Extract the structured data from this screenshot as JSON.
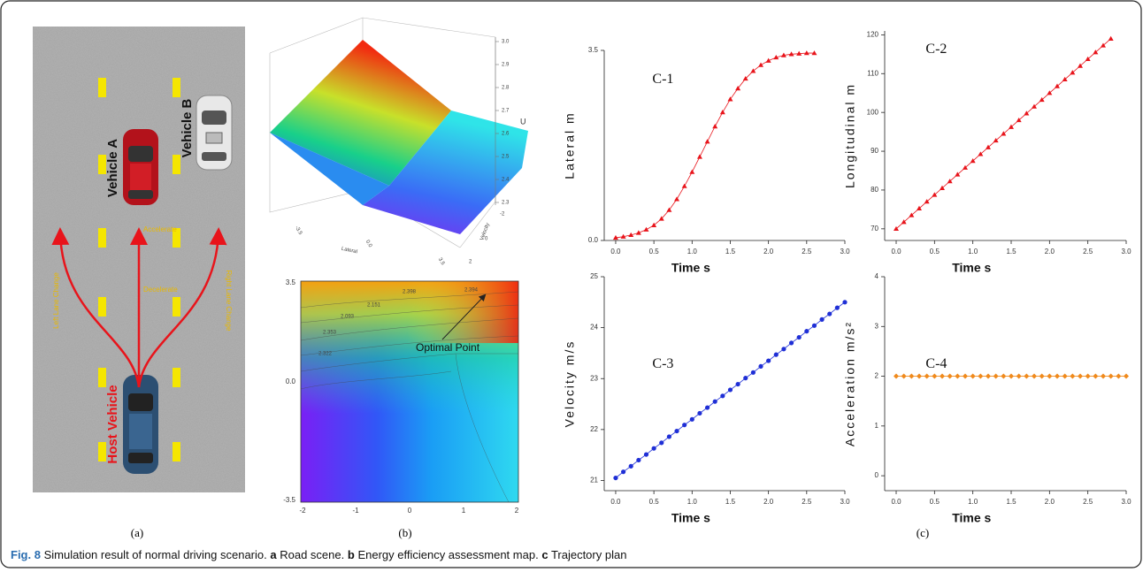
{
  "figure": {
    "panel_labels": [
      "(a)",
      "(b)",
      "(c)"
    ],
    "road": {
      "vehicle_a": "Vehicle A",
      "vehicle_b": "Vehicle B",
      "host": "Host Vehicle",
      "left_change": "Left Lane Change",
      "right_change": "Right Lane Change",
      "accelerate": "Accelerate",
      "decelerate": "Decelerate"
    },
    "surface": {
      "z_label": "U",
      "z_ticks": [
        "3.0",
        "2.9",
        "2.8",
        "2.7",
        "2.6",
        "2.5",
        "2.4",
        "2.3"
      ],
      "x_label": "Lateral",
      "x_ticks": [
        "-3.5",
        "0.0",
        "3.5"
      ],
      "y_label": "Velocity",
      "y_ticks": [
        "2",
        "0",
        "-2"
      ]
    },
    "contour": {
      "y_ticks": [
        "3.5",
        "0.0",
        "-3.5"
      ],
      "x_ticks": [
        "-2",
        "-1",
        "0",
        "1",
        "2"
      ],
      "levels": [
        "2.398",
        "2.394",
        "2.151",
        "2.093",
        "2.353",
        "2.322"
      ],
      "annotation": "Optimal Point"
    },
    "caption": {
      "label": "Fig. 8",
      "text": "Simulation result of normal driving scenario.",
      "parts": [
        {
          "key": "a",
          "text": "Road scene."
        },
        {
          "key": "b",
          "text": "Energy efficiency assessment map."
        },
        {
          "key": "c",
          "text": "Trajectory plan"
        }
      ]
    }
  },
  "chart_data": [
    {
      "type": "line",
      "title": "C-1",
      "xlabel": "Time s",
      "ylabel": "Lateral m",
      "color": "#e8141b",
      "marker": "triangle",
      "x": [
        0,
        0.1,
        0.2,
        0.3,
        0.4,
        0.5,
        0.6,
        0.7,
        0.8,
        0.9,
        1,
        1.1,
        1.2,
        1.3,
        1.4,
        1.5,
        1.6,
        1.7,
        1.8,
        1.9,
        2,
        2.1,
        2.2,
        2.3,
        2.4,
        2.5,
        2.6
      ],
      "values": [
        0.05,
        0.07,
        0.1,
        0.14,
        0.2,
        0.28,
        0.4,
        0.56,
        0.76,
        1,
        1.26,
        1.54,
        1.82,
        2.1,
        2.36,
        2.6,
        2.8,
        2.98,
        3.12,
        3.23,
        3.31,
        3.37,
        3.41,
        3.43,
        3.44,
        3.45,
        3.45
      ],
      "xlim": [
        -0.15,
        3
      ],
      "ylim": [
        0,
        3.5
      ],
      "xticks": [
        {
          "value": 0,
          "label": "0.0"
        },
        0.5,
        {
          "value": 1,
          "label": "1.0"
        },
        1.5,
        {
          "value": 2,
          "label": "2.0"
        },
        2.5,
        {
          "value": 3,
          "label": "3.0"
        }
      ],
      "yticks": [
        {
          "value": 0,
          "label": "0.0"
        },
        3.5
      ]
    },
    {
      "type": "line",
      "title": "C-2",
      "xlabel": "Time s",
      "ylabel": "Longitudinal m",
      "color": "#e8141b",
      "marker": "triangle",
      "x": [
        0,
        0.1,
        0.2,
        0.3,
        0.4,
        0.5,
        0.6,
        0.7,
        0.8,
        0.9,
        1,
        1.1,
        1.2,
        1.3,
        1.4,
        1.5,
        1.6,
        1.7,
        1.8,
        1.9,
        2,
        2.1,
        2.2,
        2.3,
        2.4,
        2.5,
        2.6,
        2.7,
        2.8
      ],
      "values": [
        70,
        71.75,
        73.5,
        75.25,
        77,
        78.75,
        80.5,
        82.25,
        84,
        85.75,
        87.5,
        89.25,
        91,
        92.75,
        94.5,
        96.25,
        98,
        99.75,
        101.5,
        103.25,
        105,
        106.75,
        108.5,
        110.25,
        112,
        113.75,
        115.5,
        117.25,
        119
      ],
      "xlim": [
        -0.15,
        3
      ],
      "ylim": [
        67,
        121
      ],
      "xticks": [
        {
          "value": 0,
          "label": "0.0"
        },
        0.5,
        {
          "value": 1,
          "label": "1.0"
        },
        1.5,
        {
          "value": 2,
          "label": "2.0"
        },
        2.5,
        {
          "value": 3,
          "label": "3.0"
        }
      ],
      "yticks": [
        70,
        80,
        90,
        100,
        110,
        120
      ]
    },
    {
      "type": "line",
      "title": "C-3",
      "xlabel": "Time s",
      "ylabel": "Velocity m/s",
      "color": "#1f2fd6",
      "marker": "circle",
      "x": [
        0,
        0.1,
        0.2,
        0.3,
        0.4,
        0.5,
        0.6,
        0.7,
        0.8,
        0.9,
        1,
        1.1,
        1.2,
        1.3,
        1.4,
        1.5,
        1.6,
        1.7,
        1.8,
        1.9,
        2,
        2.1,
        2.2,
        2.3,
        2.4,
        2.5,
        2.6,
        2.7,
        2.8,
        2.9,
        3
      ],
      "values": [
        21.05,
        21.17,
        21.28,
        21.4,
        21.51,
        21.63,
        21.74,
        21.86,
        21.97,
        22.09,
        22.2,
        22.32,
        22.43,
        22.55,
        22.66,
        22.78,
        22.89,
        23.01,
        23.12,
        23.24,
        23.35,
        23.47,
        23.58,
        23.7,
        23.81,
        23.93,
        24.04,
        24.16,
        24.27,
        24.39,
        24.5
      ],
      "xlim": [
        -0.15,
        3
      ],
      "ylim": [
        20.8,
        25
      ],
      "xticks": [
        {
          "value": 0,
          "label": "0.0"
        },
        0.5,
        {
          "value": 1,
          "label": "1.0"
        },
        1.5,
        {
          "value": 2,
          "label": "2.0"
        },
        2.5,
        {
          "value": 3,
          "label": "3.0"
        }
      ],
      "yticks": [
        21,
        22,
        23,
        24,
        25
      ]
    },
    {
      "type": "line",
      "title": "C-4",
      "xlabel": "Time s",
      "ylabel": "Acceleration m/s²",
      "color": "#f08a1c",
      "marker": "diamond",
      "x": [
        0,
        0.1,
        0.2,
        0.3,
        0.4,
        0.5,
        0.6,
        0.7,
        0.8,
        0.9,
        1,
        1.1,
        1.2,
        1.3,
        1.4,
        1.5,
        1.6,
        1.7,
        1.8,
        1.9,
        2,
        2.1,
        2.2,
        2.3,
        2.4,
        2.5,
        2.6,
        2.7,
        2.8,
        2.9,
        3
      ],
      "values": [
        2,
        2,
        2,
        2,
        2,
        2,
        2,
        2,
        2,
        2,
        2,
        2,
        2,
        2,
        2,
        2,
        2,
        2,
        2,
        2,
        2,
        2,
        2,
        2,
        2,
        2,
        2,
        2,
        2,
        2,
        2
      ],
      "xlim": [
        -0.15,
        3
      ],
      "ylim": [
        -0.3,
        4
      ],
      "xticks": [
        {
          "value": 0,
          "label": "0.0"
        },
        0.5,
        {
          "value": 1,
          "label": "1.0"
        },
        1.5,
        {
          "value": 2,
          "label": "2.0"
        },
        2.5,
        {
          "value": 3,
          "label": "3.0"
        }
      ],
      "yticks": [
        0,
        1,
        2,
        3,
        4
      ]
    }
  ]
}
